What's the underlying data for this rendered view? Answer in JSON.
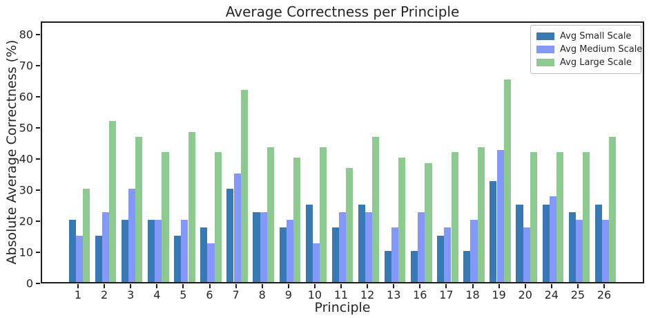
{
  "chart_data": {
    "type": "bar",
    "title": "Average Correctness per Principle",
    "xlabel": "Principle",
    "ylabel": "Absolute Average Correctness (%)",
    "categories": [
      "1",
      "2",
      "3",
      "4",
      "5",
      "6",
      "7",
      "8",
      "9",
      "10",
      "11",
      "12",
      "13",
      "16",
      "17",
      "18",
      "19",
      "20",
      "24",
      "25",
      "26"
    ],
    "series": [
      {
        "name": "Avg Small Scale",
        "color": "#3679B5",
        "values": [
          20,
          15,
          20,
          20,
          15,
          17.5,
          30,
          22.5,
          17.5,
          25,
          17.5,
          25,
          10,
          10,
          15,
          10,
          32.5,
          25,
          25,
          22.5,
          25
        ]
      },
      {
        "name": "Avg Medium Scale",
        "color": "#8497FA",
        "values": [
          15,
          22.5,
          30,
          20,
          20,
          12.5,
          35,
          22.5,
          20,
          12.5,
          22.5,
          22.5,
          17.5,
          22.5,
          17.5,
          20,
          42.5,
          17.5,
          27.5,
          20,
          20
        ]
      },
      {
        "name": "Avg Large Scale",
        "color": "#8DCA90",
        "values": [
          30,
          51.7,
          46.7,
          41.7,
          48.3,
          41.7,
          61.7,
          43.3,
          40,
          43.3,
          36.7,
          46.7,
          40,
          38.3,
          41.7,
          43.3,
          65,
          41.7,
          41.7,
          41.7,
          46.7
        ]
      }
    ],
    "yticks": [
      0,
      10,
      20,
      30,
      40,
      50,
      60,
      70,
      80
    ],
    "ylim": [
      0,
      84.2
    ],
    "grid": false,
    "legend_position": "upper right"
  }
}
